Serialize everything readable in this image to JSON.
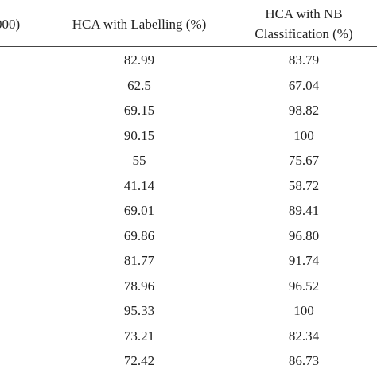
{
  "header": {
    "col0": "000)",
    "col1": "HCA with Labelling (%)",
    "col2_line1": "HCA with NB",
    "col2_line2": "Classification (%)"
  },
  "rows": [
    {
      "labelling": "82.99",
      "nb": "83.79"
    },
    {
      "labelling": "62.5",
      "nb": "67.04"
    },
    {
      "labelling": "69.15",
      "nb": "98.82"
    },
    {
      "labelling": "90.15",
      "nb": "100"
    },
    {
      "labelling": "55",
      "nb": "75.67"
    },
    {
      "labelling": "41.14",
      "nb": "58.72"
    },
    {
      "labelling": "69.01",
      "nb": "89.41"
    },
    {
      "labelling": "69.86",
      "nb": "96.80"
    },
    {
      "labelling": "81.77",
      "nb": "91.74"
    },
    {
      "labelling": "78.96",
      "nb": "96.52"
    },
    {
      "labelling": "95.33",
      "nb": "100"
    },
    {
      "labelling": "73.21",
      "nb": "82.34"
    },
    {
      "labelling": "72.42",
      "nb": "86.73"
    }
  ]
}
